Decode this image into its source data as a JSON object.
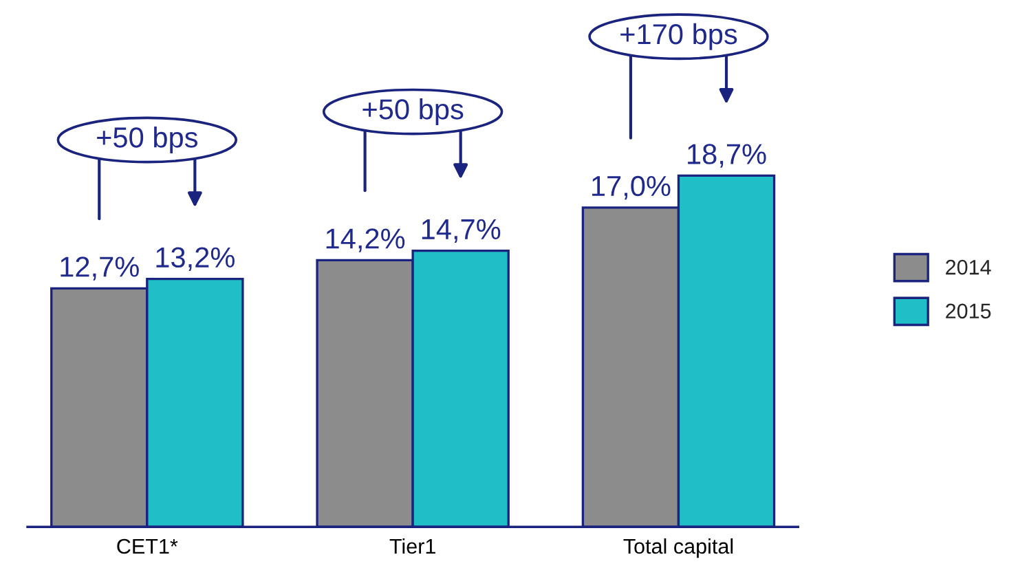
{
  "chart_data": {
    "type": "bar",
    "categories": [
      "CET1*",
      "Tier1",
      "Total capital"
    ],
    "series": [
      {
        "name": "2014",
        "color": "#8c8c8c",
        "values": [
          12.7,
          14.2,
          17.0
        ],
        "value_labels": [
          "12,7%",
          "14,2%",
          "17,0%"
        ]
      },
      {
        "name": "2015",
        "color": "#20bfc8",
        "values": [
          13.2,
          14.7,
          18.7
        ],
        "value_labels": [
          "13,2%",
          "14,7%",
          "18,7%"
        ]
      }
    ],
    "annotations": [
      "+50 bps",
      "+50 bps",
      "+170 bps"
    ],
    "legend": "right",
    "tick_labels": "x"
  }
}
